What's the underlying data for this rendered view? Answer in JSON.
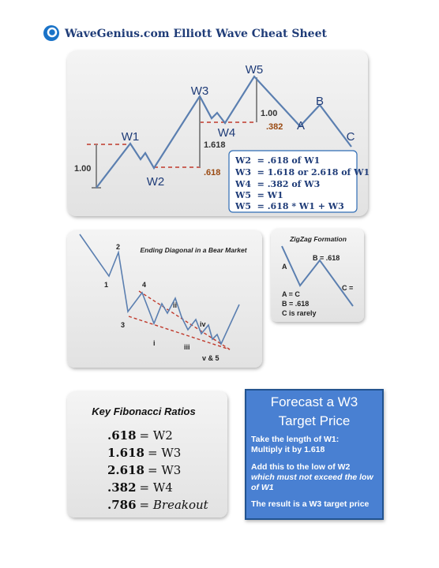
{
  "header": {
    "title": "WaveGenius.com Elliott Wave Cheat Sheet"
  },
  "wave_panel": {
    "labels": [
      "W1",
      "W2",
      "W3",
      "W4",
      "W5",
      "A",
      "B",
      "C"
    ],
    "measures": [
      "1.00",
      ".618",
      "1.618",
      "1.00",
      ".382"
    ],
    "rules": [
      "W2  = .618 of W1",
      "W3  = 1.618 or 2.618 of W1",
      "W4  = .382 of W3",
      "W5  = W1",
      "W5  = .618 * W1 + W3"
    ]
  },
  "diagonal_panel": {
    "title": "Ending Diagonal in a Bear Market",
    "labels": [
      "1",
      "2",
      "3",
      "4",
      "i",
      "ii",
      "iii",
      "iv",
      "v & 5"
    ]
  },
  "zigzag_panel": {
    "title": "ZigZag Formation",
    "labels": [
      "A",
      "B = .618",
      "C ="
    ],
    "notes": [
      "A = C",
      "B = .618",
      "C is rarely"
    ]
  },
  "fib_panel": {
    "title": "Key Fibonacci Ratios",
    "rows": [
      {
        "ratio": ".618",
        "target": "= W2"
      },
      {
        "ratio": "1.618",
        "target": "= W3"
      },
      {
        "ratio": "2.618",
        "target": "= W3"
      },
      {
        "ratio": ".382",
        "target": "= W4"
      },
      {
        "ratio": ".786",
        "target": "= Breakout"
      }
    ]
  },
  "forecast_panel": {
    "title": [
      "Forecast a W3",
      "Target Price"
    ],
    "lines": [
      "Take the length of W1:",
      "Multiply it by 1.618",
      "Add this to the low of W2",
      "which must not exceed the low",
      "of W1",
      "The result is a W3 target price"
    ]
  }
}
